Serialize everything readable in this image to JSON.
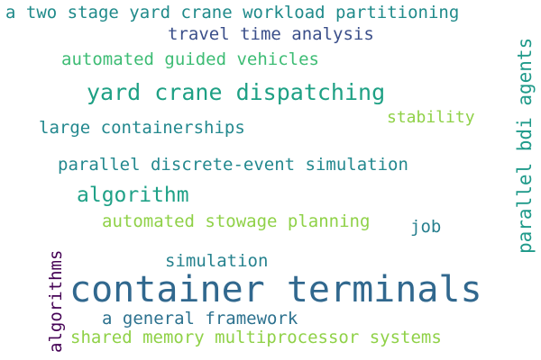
{
  "words": [
    {
      "text": "a two stage yard crane workload partitioning",
      "color": "#1f8a8a"
    },
    {
      "text": "travel time analysis",
      "color": "#3b4f8a"
    },
    {
      "text": "automated guided vehicles",
      "color": "#3dbc74"
    },
    {
      "text": "yard crane dispatching",
      "color": "#1ea084"
    },
    {
      "text": "parallel bdi agents",
      "color": "#1f9a8a"
    },
    {
      "text": "stability",
      "color": "#8fd147"
    },
    {
      "text": "large containerships",
      "color": "#23888e"
    },
    {
      "text": "parallel discrete-event simulation",
      "color": "#23888e"
    },
    {
      "text": "algorithm",
      "color": "#1fa187"
    },
    {
      "text": "automated stowage planning",
      "color": "#8fd147"
    },
    {
      "text": "job",
      "color": "#277f8e"
    },
    {
      "text": "simulation",
      "color": "#26828e"
    },
    {
      "text": "algorithms",
      "color": "#440154"
    },
    {
      "text": "container terminals",
      "color": "#31688e"
    },
    {
      "text": "a general framework",
      "color": "#2c718e"
    },
    {
      "text": "shared memory multiprocessor systems",
      "color": "#8fd147"
    }
  ]
}
